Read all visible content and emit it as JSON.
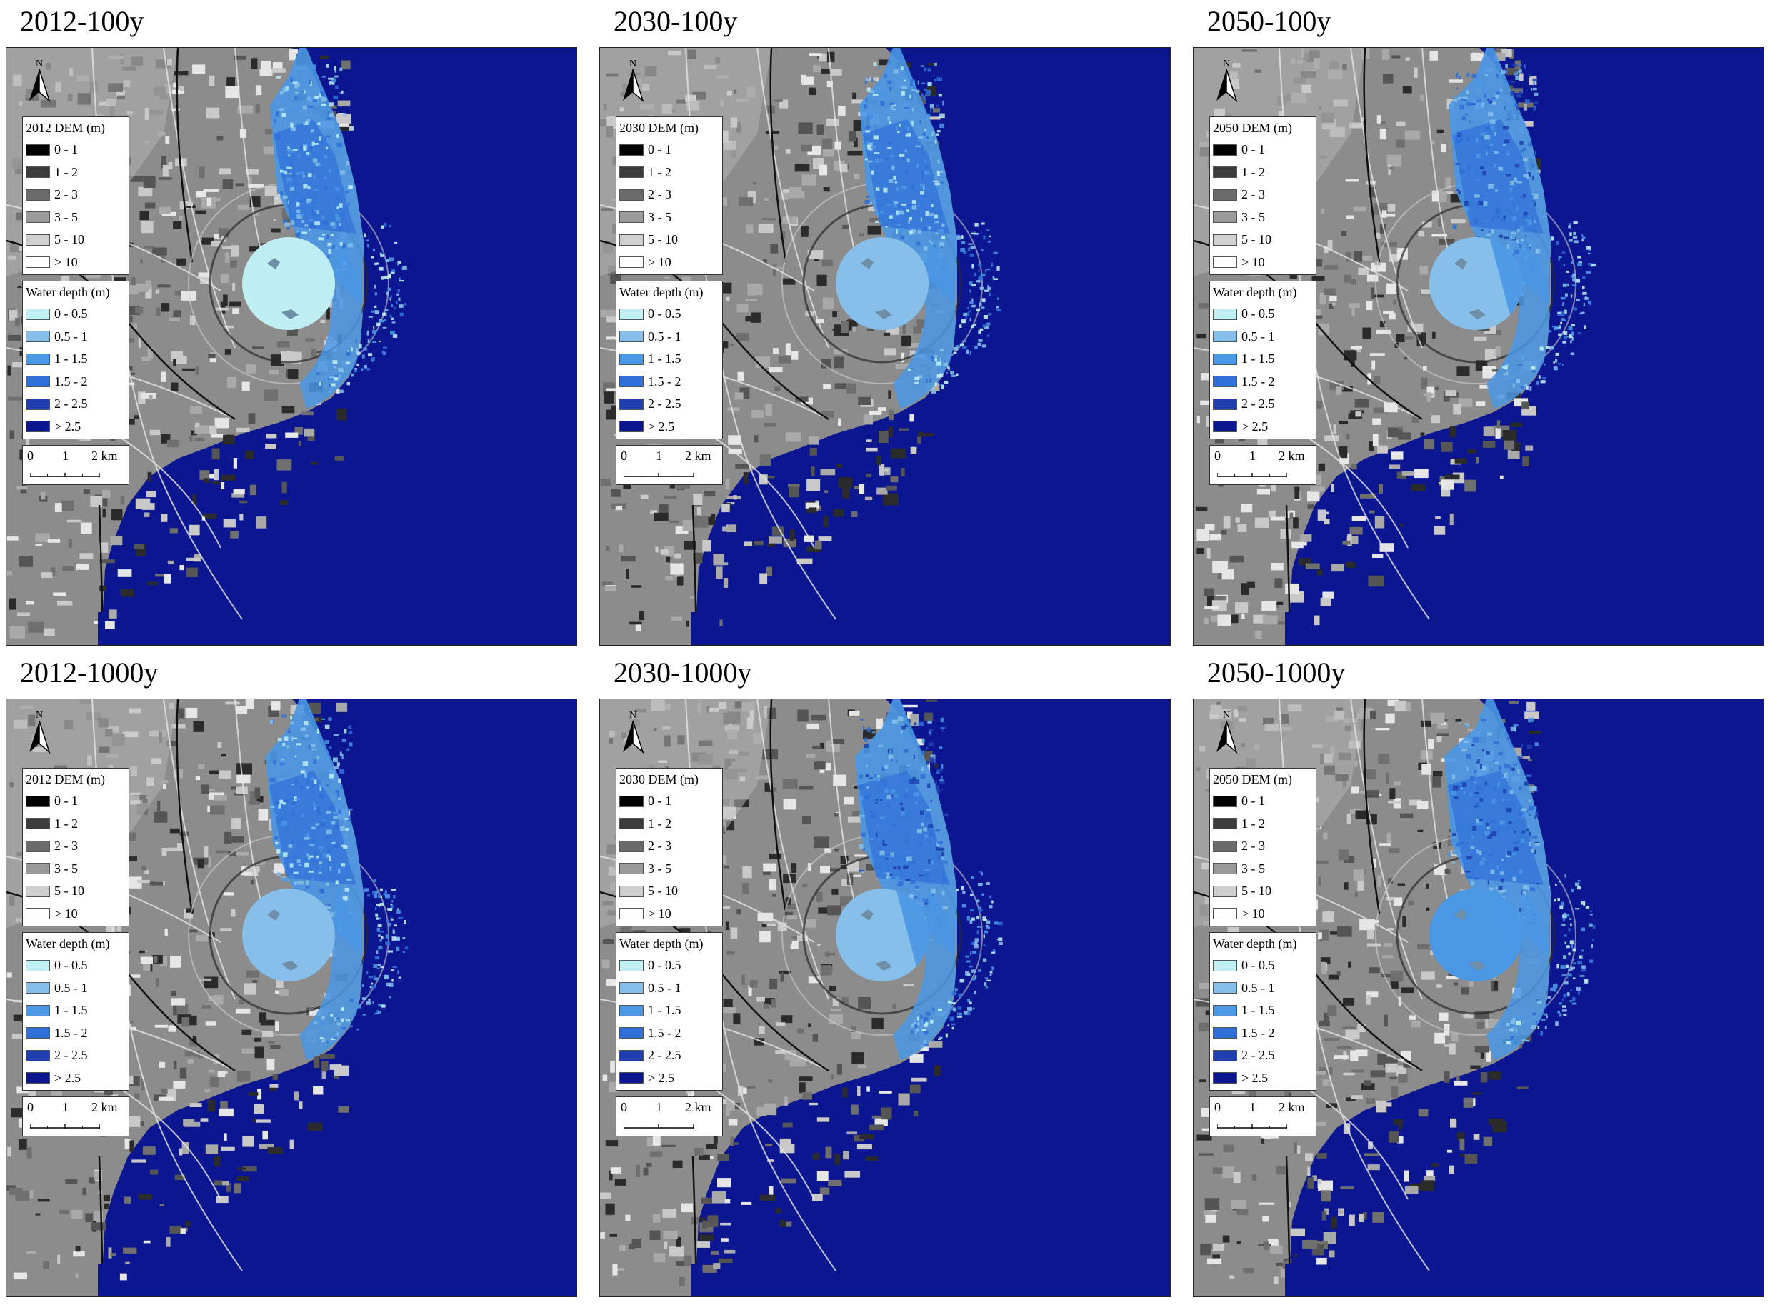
{
  "panels": [
    {
      "title": "2012-100y",
      "dem_title": "2012 DEM (m)",
      "flood_level": 1
    },
    {
      "title": "2030-100y",
      "dem_title": "2030 DEM (m)",
      "flood_level": 2
    },
    {
      "title": "2050-100y",
      "dem_title": "2050 DEM (m)",
      "flood_level": 3
    },
    {
      "title": "2012-1000y",
      "dem_title": "2012 DEM (m)",
      "flood_level": 2
    },
    {
      "title": "2030-1000y",
      "dem_title": "2030 DEM (m)",
      "flood_level": 3
    },
    {
      "title": "2050-1000y",
      "dem_title": "2050 DEM (m)",
      "flood_level": 4
    }
  ],
  "north_label": "N",
  "dem_legend": {
    "items": [
      {
        "label": "0 - 1",
        "color": "#000000"
      },
      {
        "label": "1 - 2",
        "color": "#3c3c3c"
      },
      {
        "label": "2 - 3",
        "color": "#6b6b6b"
      },
      {
        "label": "3 - 5",
        "color": "#9a9a9a"
      },
      {
        "label": "5 - 10",
        "color": "#cfcfcf"
      },
      {
        "label": "> 10",
        "color": "#ffffff"
      }
    ]
  },
  "depth_legend": {
    "title": "Water depth (m)",
    "items": [
      {
        "label": "0 - 0.5",
        "color": "#bfeef3"
      },
      {
        "label": "0.5 - 1",
        "color": "#86bfe9"
      },
      {
        "label": "1 - 1.5",
        "color": "#4a97e4"
      },
      {
        "label": "1.5 - 2",
        "color": "#2f6fd8"
      },
      {
        "label": "2 - 2.5",
        "color": "#1f3fb0"
      },
      {
        "label": "> 2.5",
        "color": "#0b1690"
      }
    ]
  },
  "scale_bar": {
    "labels": [
      "0",
      "1",
      "2 km"
    ]
  },
  "colors": {
    "sea": "#0b1690",
    "land": "#8c8c8c"
  }
}
